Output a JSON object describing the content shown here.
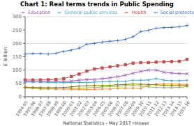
{
  "chart_data": {
    "type": "line",
    "title": "Chart 1: Real terms trends in Public Spending",
    "xlabel": "National Statistics - May 2017 release",
    "ylabel": "£ billion",
    "categories": [
      "1994-95",
      "1995-96",
      "1996-97",
      "1997-98",
      "1998-99",
      "1999-00",
      "2000-01",
      "2001-02",
      "2002-03",
      "2003-04",
      "2004-05",
      "2005-06",
      "2006-07",
      "2007-08",
      "2008-09",
      "2009-10",
      "2010-11",
      "2011-12",
      "2012-13",
      "2013-14",
      "2014-15",
      "2015-16"
    ],
    "series": [
      {
        "name": "Social protection",
        "color": "#4472C4",
        "marker": "plus",
        "values": [
          160,
          162,
          162,
          160,
          163,
          170,
          175,
          182,
          197,
          200,
          205,
          208,
          210,
          215,
          225,
          244,
          249,
          257,
          259,
          260,
          262,
          267
        ]
      },
      {
        "name": "Health",
        "color": "#C0504D",
        "marker": "square",
        "values": [
          63,
          63,
          63,
          64,
          65,
          68,
          76,
          85,
          96,
          104,
          108,
          112,
          116,
          120,
          126,
          128,
          128,
          130,
          131,
          132,
          133,
          140
        ]
      },
      {
        "name": "Education",
        "color": "#9B59B6",
        "marker": "x",
        "values": [
          58,
          57,
          57,
          57,
          57,
          57,
          59,
          62,
          64,
          65,
          68,
          71,
          75,
          81,
          88,
          95,
          100,
          100,
          92,
          89,
          87,
          86
        ]
      },
      {
        "name": "General public services",
        "color": "#4BACC6",
        "marker": "plus",
        "values": [
          55,
          55,
          55,
          54,
          53,
          53,
          54,
          54,
          53,
          55,
          56,
          57,
          58,
          58,
          62,
          62,
          63,
          68,
          62,
          60,
          60,
          62
        ]
      },
      {
        "color": "#9BBB59",
        "marker": "plus",
        "values": [
          33,
          31,
          29,
          29,
          29,
          30,
          32,
          32,
          33,
          35,
          37,
          38,
          39,
          42,
          42,
          40,
          37,
          35,
          34,
          34,
          35,
          38
        ]
      },
      {
        "color": "#F79646",
        "marker": "diamond",
        "values": [
          36,
          35,
          33,
          32,
          29,
          29,
          28,
          28,
          27,
          28,
          29,
          29,
          32,
          32,
          32,
          31,
          44,
          47,
          48,
          48,
          47,
          46
        ]
      },
      {
        "color": "#808000",
        "marker": "plus",
        "values": [
          35,
          35,
          34,
          34,
          34,
          35,
          37,
          40,
          41,
          42,
          42,
          43,
          45,
          46,
          48,
          47,
          46,
          45,
          43,
          42,
          42,
          42
        ]
      }
    ],
    "ylim": [
      0,
      300
    ],
    "yticks": [
      0,
      50,
      100,
      150,
      200,
      250,
      300
    ],
    "grid": "y",
    "legend": "upper left"
  }
}
